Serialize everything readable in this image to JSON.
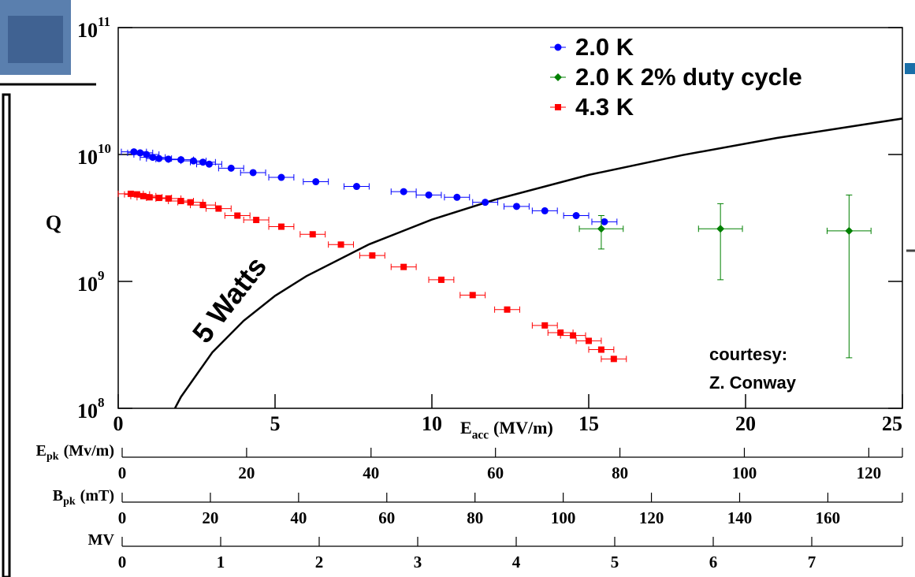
{
  "chart_data": {
    "type": "scatter",
    "ylog": true,
    "ylabel": "Q",
    "xlabel": {
      "main": "E",
      "sub": "acc",
      "unit": "(MV/m)"
    },
    "xlim": [
      0,
      25
    ],
    "xticks": [
      0,
      5,
      10,
      15,
      20,
      25
    ],
    "ylim": [
      100000000,
      100000000000
    ],
    "yticks": [
      {
        "value": 100000000,
        "label": "10",
        "exponent": "8"
      },
      {
        "value": 1000000000,
        "label": "10",
        "exponent": "9"
      },
      {
        "value": 10000000000,
        "label": "10",
        "exponent": "10"
      },
      {
        "value": 100000000000,
        "label": "10",
        "exponent": "11"
      }
    ],
    "legend": "upper right",
    "series": [
      {
        "name": "2.0 K",
        "color": "#0000ff",
        "marker": "circle",
        "xerr": 0.4,
        "x": [
          0.5,
          0.7,
          0.9,
          1.1,
          1.3,
          1.6,
          2.0,
          2.4,
          2.7,
          2.9,
          3.6,
          4.3,
          5.2,
          6.3,
          7.6,
          9.1,
          9.9,
          10.8,
          11.7,
          12.7,
          13.6,
          14.6,
          15.5
        ],
        "values": [
          10500000000,
          10300000000,
          10000000000,
          9500000000,
          9300000000,
          9200000000,
          9100000000,
          8900000000,
          8700000000,
          8400000000,
          7800000000,
          7200000000,
          6600000000,
          6100000000,
          5600000000,
          5100000000,
          4800000000,
          4600000000,
          4200000000,
          3900000000,
          3600000000,
          3300000000,
          2950000000
        ]
      },
      {
        "name": "2.0 K 2% duty cycle",
        "color": "#008000",
        "marker": "diamond",
        "xerr": 0.7,
        "x": [
          15.4,
          19.2,
          23.3
        ],
        "values": [
          2600000000,
          2600000000,
          2500000000
        ],
        "ylow": [
          1800000000,
          1030000000,
          250000000
        ],
        "yhigh": [
          3300000000,
          4100000000,
          4800000000
        ]
      },
      {
        "name": "4.3 K",
        "color": "#ff0000",
        "marker": "square",
        "xerr": 0.4,
        "x": [
          0.4,
          0.6,
          0.8,
          1.0,
          1.3,
          1.6,
          2.0,
          2.3,
          2.7,
          3.2,
          3.8,
          4.4,
          5.2,
          6.2,
          7.1,
          8.1,
          9.1,
          10.3,
          11.3,
          12.4,
          13.6,
          14.1,
          14.5,
          15.0,
          15.4,
          15.8
        ],
        "values": [
          4900000000,
          4850000000,
          4700000000,
          4600000000,
          4550000000,
          4500000000,
          4300000000,
          4200000000,
          4000000000,
          3750000000,
          3300000000,
          3050000000,
          2700000000,
          2350000000,
          1950000000,
          1600000000,
          1300000000,
          1030000000,
          780000000,
          600000000,
          450000000,
          395000000,
          375000000,
          340000000,
          290000000,
          245000000
        ]
      }
    ],
    "curve": {
      "label": "5 Watts",
      "color": "#000000",
      "x": [
        1.8,
        2,
        3,
        4,
        5,
        6,
        8,
        10,
        12,
        15,
        18,
        21,
        25
      ],
      "values": [
        99000000,
        123000000,
        276000000,
        490000000,
        770000000,
        1100000000,
        1960000000,
        3070000000,
        4400000000,
        6900000000,
        9900000000,
        13500000000,
        19200000000
      ]
    },
    "annotation": [
      "courtesy:",
      "Z. Conway"
    ],
    "secondary_axes": [
      {
        "label": {
          "main": "E",
          "sub": "pk",
          "unit": "(Mv/m)"
        },
        "xlim": [
          0,
          125.4
        ],
        "xticks": [
          0,
          20,
          40,
          60,
          80,
          100,
          120
        ]
      },
      {
        "label": {
          "main": "B",
          "sub": "pk",
          "unit": "(mT)"
        },
        "xlim": [
          0,
          176.9
        ],
        "xticks": [
          0,
          20,
          40,
          60,
          80,
          100,
          120,
          140,
          160
        ]
      },
      {
        "label": {
          "main": "MV"
        },
        "xlim": [
          0,
          7.92
        ],
        "xticks": [
          0,
          1,
          2,
          3,
          4,
          5,
          6,
          7
        ]
      }
    ]
  }
}
